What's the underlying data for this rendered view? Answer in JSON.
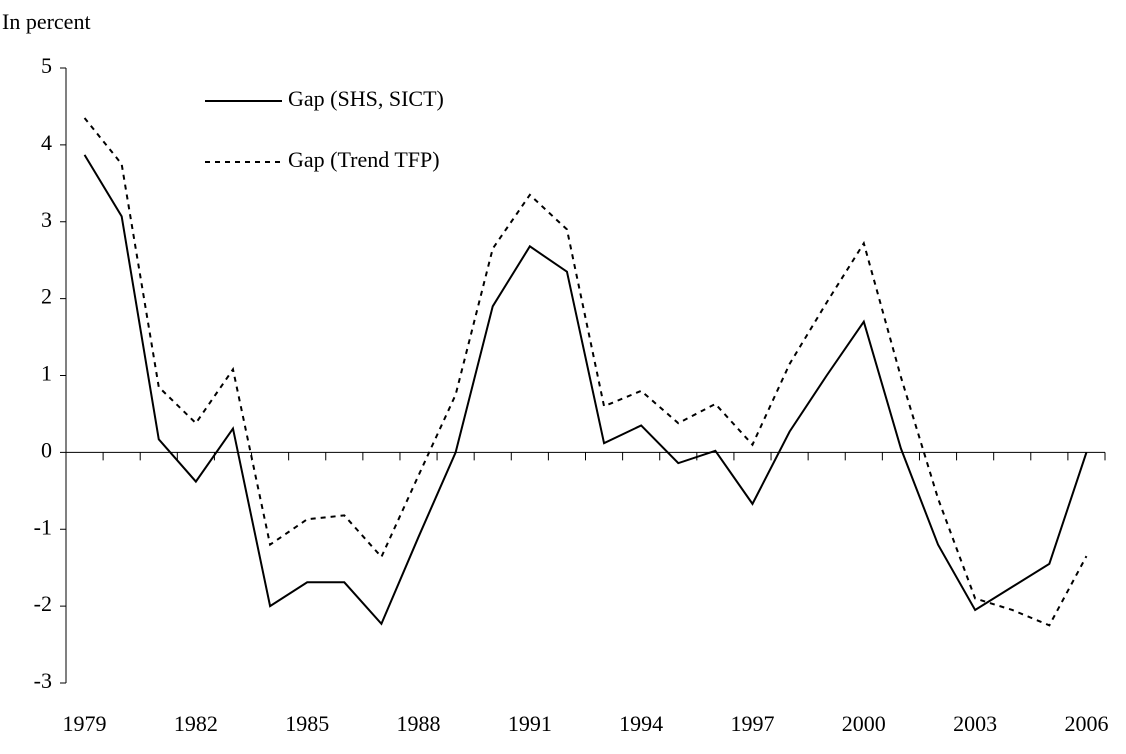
{
  "chart_data": {
    "type": "line",
    "y_label": "In percent",
    "categories": [
      "1979",
      null,
      null,
      "1982",
      null,
      null,
      "1985",
      null,
      null,
      "1988",
      null,
      null,
      "1991",
      null,
      null,
      "1994",
      null,
      null,
      "1997",
      null,
      null,
      "2000",
      null,
      null,
      "2003",
      null,
      null,
      "2006"
    ],
    "series": [
      {
        "name": "Gap (SHS, SICT)",
        "color": "#000000",
        "dash": "solid",
        "values": [
          3.87,
          3.07,
          0.17,
          -0.38,
          0.31,
          -2.0,
          -1.69,
          -1.69,
          -2.23,
          -1.1,
          0.0,
          1.9,
          2.68,
          2.35,
          0.12,
          0.35,
          -0.14,
          0.02,
          -0.67,
          0.27,
          1.0,
          1.7,
          0.05,
          -1.2,
          -2.05,
          -1.75,
          -1.45,
          0.0
        ]
      },
      {
        "name": "Gap (Trend TFP)",
        "color": "#000000",
        "dash": "dotted",
        "values": [
          4.35,
          3.75,
          0.85,
          0.38,
          1.08,
          -1.2,
          -0.87,
          -0.82,
          -1.36,
          -0.3,
          0.75,
          2.65,
          3.35,
          2.9,
          0.6,
          0.8,
          0.38,
          0.63,
          0.1,
          1.15,
          1.95,
          2.72,
          0.98,
          -0.6,
          -1.9,
          -2.05,
          -2.25,
          -1.35
        ]
      }
    ],
    "ylim": [
      -3,
      5
    ],
    "yticks": [
      -3,
      -2,
      -1,
      0,
      1,
      2,
      3,
      4,
      5
    ],
    "grid": false,
    "legend": "upper left"
  }
}
